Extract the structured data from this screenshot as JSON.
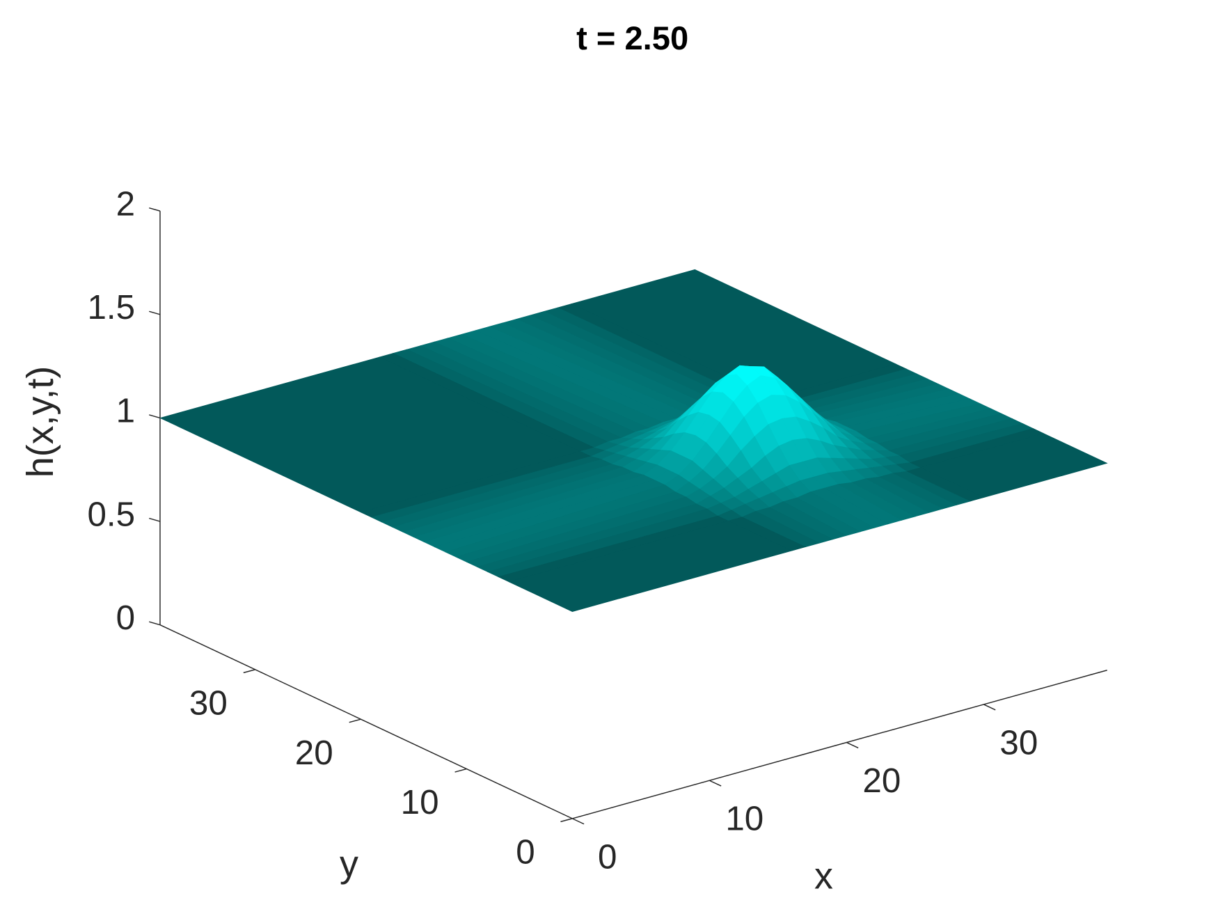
{
  "chart_data": {
    "type": "surface",
    "title": "t = 2.50",
    "xlabel": "x",
    "ylabel": "y",
    "zlabel": "h(x,y,t)",
    "x": [
      0,
      16,
      17,
      18,
      19,
      20,
      21,
      22,
      23,
      24,
      25,
      26,
      27,
      28,
      29,
      30,
      39
    ],
    "y": [
      0,
      6,
      7,
      8,
      9,
      10,
      11,
      12,
      13,
      14,
      15,
      16,
      17,
      18,
      19,
      20,
      39
    ],
    "z": [
      [
        1,
        1,
        1,
        1,
        1,
        1,
        1,
        1,
        1,
        1,
        1,
        1,
        1,
        1,
        1,
        1,
        1
      ],
      [
        1,
        1,
        1,
        1.01,
        1.01,
        1.02,
        1.02,
        1.03,
        1.03,
        1.03,
        1.02,
        1.02,
        1.01,
        1.01,
        1,
        1,
        1
      ],
      [
        1,
        1,
        1.01,
        1.02,
        1.03,
        1.04,
        1.05,
        1.06,
        1.06,
        1.06,
        1.05,
        1.04,
        1.03,
        1.02,
        1.01,
        1,
        1
      ],
      [
        1,
        1.01,
        1.02,
        1.03,
        1.05,
        1.07,
        1.09,
        1.11,
        1.11,
        1.11,
        1.09,
        1.07,
        1.05,
        1.03,
        1.02,
        1.01,
        1
      ],
      [
        1,
        1.01,
        1.03,
        1.05,
        1.08,
        1.11,
        1.15,
        1.18,
        1.19,
        1.18,
        1.15,
        1.11,
        1.08,
        1.05,
        1.03,
        1.01,
        1
      ],
      [
        1,
        1.02,
        1.04,
        1.07,
        1.11,
        1.17,
        1.22,
        1.26,
        1.27,
        1.26,
        1.22,
        1.17,
        1.11,
        1.07,
        1.04,
        1.02,
        1
      ],
      [
        1,
        1.02,
        1.05,
        1.09,
        1.15,
        1.22,
        1.29,
        1.34,
        1.36,
        1.34,
        1.29,
        1.22,
        1.15,
        1.09,
        1.05,
        1.02,
        1
      ],
      [
        1,
        1.03,
        1.06,
        1.11,
        1.18,
        1.26,
        1.34,
        1.4,
        1.43,
        1.4,
        1.34,
        1.26,
        1.18,
        1.11,
        1.06,
        1.03,
        1
      ],
      [
        1,
        1.03,
        1.06,
        1.11,
        1.19,
        1.27,
        1.36,
        1.43,
        1.45,
        1.43,
        1.36,
        1.27,
        1.19,
        1.11,
        1.06,
        1.03,
        1
      ],
      [
        1,
        1.03,
        1.06,
        1.11,
        1.18,
        1.26,
        1.34,
        1.4,
        1.43,
        1.4,
        1.34,
        1.26,
        1.18,
        1.11,
        1.06,
        1.03,
        1
      ],
      [
        1,
        1.02,
        1.05,
        1.09,
        1.15,
        1.22,
        1.29,
        1.34,
        1.36,
        1.34,
        1.29,
        1.22,
        1.15,
        1.09,
        1.05,
        1.02,
        1
      ],
      [
        1,
        1.02,
        1.04,
        1.07,
        1.11,
        1.17,
        1.22,
        1.26,
        1.27,
        1.26,
        1.22,
        1.17,
        1.11,
        1.07,
        1.04,
        1.02,
        1
      ],
      [
        1,
        1.01,
        1.03,
        1.05,
        1.08,
        1.11,
        1.15,
        1.18,
        1.19,
        1.18,
        1.15,
        1.11,
        1.08,
        1.05,
        1.03,
        1.01,
        1
      ],
      [
        1,
        1.01,
        1.02,
        1.03,
        1.05,
        1.07,
        1.09,
        1.11,
        1.11,
        1.11,
        1.09,
        1.07,
        1.05,
        1.03,
        1.02,
        1.01,
        1
      ],
      [
        1,
        1,
        1.01,
        1.02,
        1.03,
        1.04,
        1.05,
        1.06,
        1.06,
        1.06,
        1.05,
        1.04,
        1.03,
        1.02,
        1.01,
        1,
        1
      ],
      [
        1,
        1,
        1,
        1.01,
        1.01,
        1.02,
        1.02,
        1.03,
        1.03,
        1.03,
        1.02,
        1.02,
        1.01,
        1.01,
        1,
        1,
        1
      ],
      [
        1,
        1,
        1,
        1,
        1,
        1,
        1,
        1,
        1,
        1,
        1,
        1,
        1,
        1,
        1,
        1,
        1
      ]
    ],
    "xlim": [
      0,
      39
    ],
    "ylim": [
      0,
      39
    ],
    "zlim": [
      0,
      2
    ],
    "xticks": [
      0,
      10,
      20,
      30
    ],
    "yticks": [
      0,
      10,
      20,
      30
    ],
    "zticks": [
      0,
      0.5,
      1,
      1.5,
      2
    ],
    "colormap": [
      "#02595a",
      "#00ffff"
    ]
  }
}
